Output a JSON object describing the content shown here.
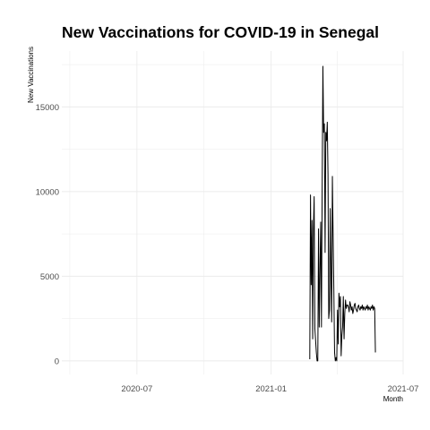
{
  "chart_data": {
    "type": "line",
    "title": "New Vaccinations for COVID-19 in Senegal",
    "xlabel": "Month",
    "ylabel": "New Vaccinations",
    "x_ticks": [
      "2020-07",
      "2021-01",
      "2021-07"
    ],
    "y_ticks": [
      0,
      5000,
      10000,
      15000
    ],
    "x_range": [
      "2020-03-20",
      "2021-07-01"
    ],
    "ylim": [
      -800,
      18300
    ],
    "grid": true,
    "legend": "none",
    "colors": {
      "line": "#000000",
      "grid": "#ebebeb"
    },
    "series": [
      {
        "x": [
          "2021-02-23",
          "2021-02-24",
          "2021-02-25",
          "2021-02-26",
          "2021-02-27",
          "2021-02-28",
          "2021-03-01",
          "2021-03-02",
          "2021-03-03",
          "2021-03-04",
          "2021-03-05",
          "2021-03-06",
          "2021-03-07",
          "2021-03-08",
          "2021-03-09",
          "2021-03-10",
          "2021-03-11",
          "2021-03-12",
          "2021-03-13",
          "2021-03-14",
          "2021-03-15",
          "2021-03-16",
          "2021-03-17",
          "2021-03-18",
          "2021-03-19",
          "2021-03-20",
          "2021-03-21",
          "2021-03-22",
          "2021-03-23",
          "2021-03-24",
          "2021-03-25",
          "2021-03-26",
          "2021-03-27",
          "2021-03-28",
          "2021-03-29",
          "2021-03-30",
          "2021-03-31",
          "2021-04-01",
          "2021-04-02",
          "2021-04-03",
          "2021-04-04",
          "2021-04-05",
          "2021-04-06",
          "2021-04-07",
          "2021-04-08",
          "2021-04-09",
          "2021-04-10",
          "2021-04-11",
          "2021-04-12",
          "2021-04-13",
          "2021-04-14",
          "2021-04-15",
          "2021-04-16",
          "2021-04-17",
          "2021-04-18",
          "2021-04-19",
          "2021-04-20",
          "2021-04-21",
          "2021-04-22",
          "2021-04-23",
          "2021-04-24",
          "2021-04-25",
          "2021-04-26",
          "2021-04-27",
          "2021-04-28",
          "2021-04-29",
          "2021-04-30",
          "2021-05-01",
          "2021-05-02",
          "2021-05-03",
          "2021-05-04",
          "2021-05-05",
          "2021-05-06",
          "2021-05-07",
          "2021-05-08",
          "2021-05-09",
          "2021-05-10",
          "2021-05-11",
          "2021-05-12",
          "2021-05-13",
          "2021-05-14",
          "2021-05-15",
          "2021-05-16",
          "2021-05-17",
          "2021-05-18",
          "2021-05-19",
          "2021-05-20",
          "2021-05-21",
          "2021-05-22",
          "2021-05-23",
          "2021-05-24"
        ],
        "values": [
          100,
          9800,
          4500,
          8300,
          1300,
          7800,
          9700,
          1900,
          1200,
          500,
          0,
          0,
          7800,
          2000,
          5400,
          8200,
          2000,
          10300,
          17400,
          13500,
          14000,
          6400,
          13500,
          13000,
          14100,
          11000,
          2500,
          3000,
          9000,
          5000,
          2300,
          10900,
          7400,
          4200,
          500,
          0,
          200,
          0,
          3000,
          1000,
          4000,
          3200,
          3800,
          300,
          1500,
          2000,
          3800,
          1300,
          2800,
          3600,
          3100,
          3300,
          3300,
          3200,
          2900,
          3500,
          3300,
          3000,
          3200,
          2800,
          3000,
          3300,
          3400,
          3100,
          3000,
          2900,
          3200,
          3300,
          3100,
          3000,
          3200,
          3100,
          3300,
          3000,
          3200,
          3100,
          3000,
          3200,
          3100,
          3300,
          3000,
          3200,
          3100,
          3000,
          3200,
          3100,
          3300,
          3000,
          3200,
          3100,
          500
        ]
      }
    ]
  }
}
